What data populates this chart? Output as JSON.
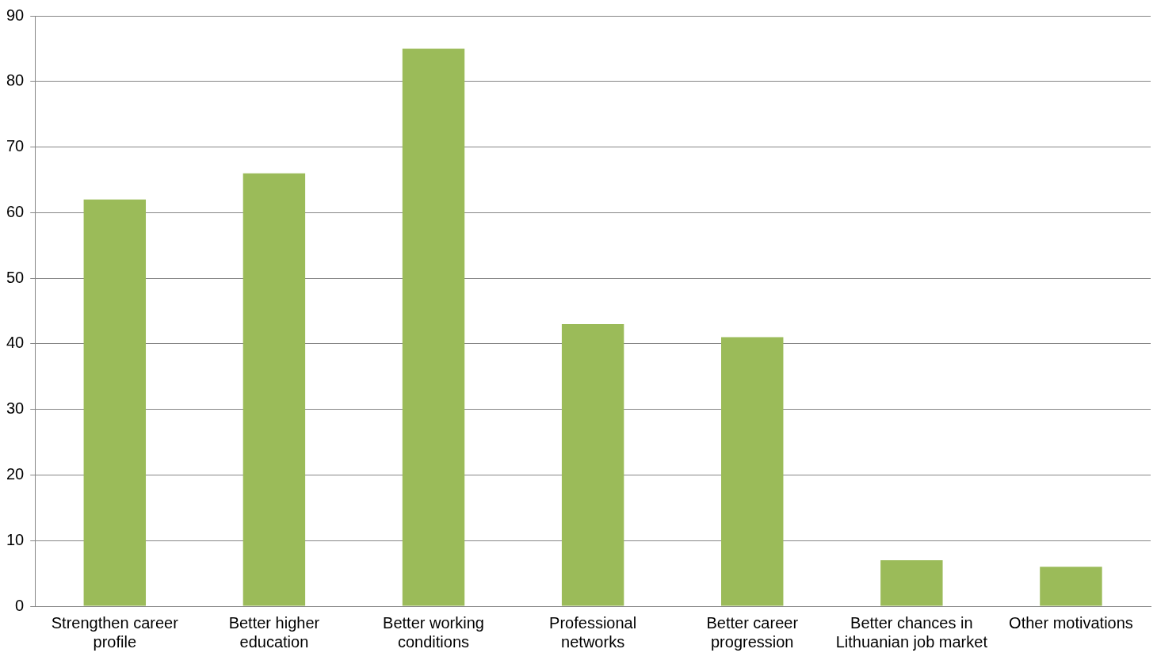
{
  "chart_data": {
    "type": "bar",
    "categories": [
      "Strengthen career profile",
      "Better higher education",
      "Better working conditions",
      "Professional networks",
      "Better career progression",
      "Better chances in Lithuanian job market",
      "Other motivations"
    ],
    "values": [
      62,
      66,
      85,
      43,
      41,
      7,
      6
    ],
    "color": "#9bbb59",
    "ylim": [
      0,
      90
    ],
    "yticks": [
      0,
      10,
      20,
      30,
      40,
      50,
      60,
      70,
      80,
      90
    ],
    "grid": "y",
    "legend": false
  }
}
